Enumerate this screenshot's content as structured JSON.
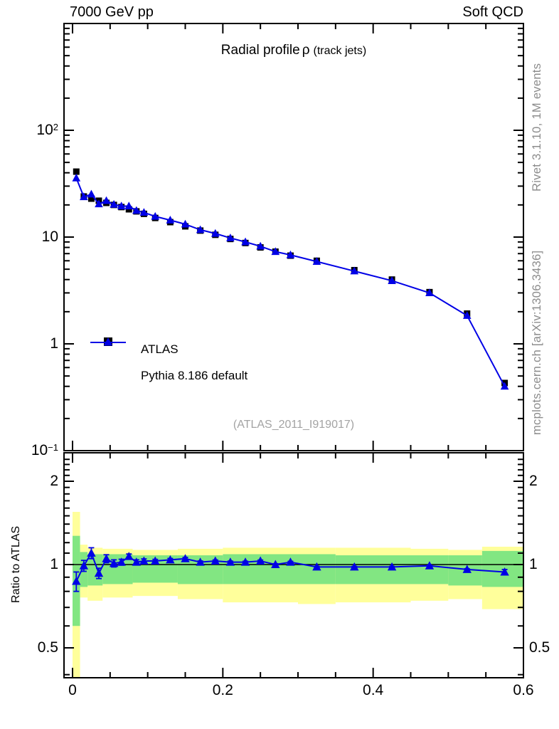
{
  "header": {
    "left": "7000 GeV pp",
    "right": "Soft QCD"
  },
  "main_panel": {
    "title": "Radial profile",
    "title_symbol": "ρ",
    "title_detail": "(track jets)",
    "watermark": "(ATLAS_2011_I919017)",
    "legend": [
      {
        "label": "ATLAS",
        "marker": "black-square"
      },
      {
        "label": "Pythia 8.186 default",
        "marker": "blue-line-triangle"
      }
    ]
  },
  "ratio_panel": {
    "ylabel": "Ratio to ATLAS"
  },
  "credits": {
    "rivet": "Rivet 3.1.10,  1M events",
    "mcplots": "mcplots.cern.ch [arXiv:1306.3436]"
  },
  "colors": {
    "blue": "#0000e6",
    "marker_black": "#000000",
    "band_green": "#82e682",
    "band_yellow": "#ffff9b",
    "credit_gray": "#8c8c8c",
    "watermark_gray": "#a3a3a3",
    "frame_black": "#000000"
  },
  "chart_data": {
    "type": "line",
    "title": "Radial profile ρ (track jets)",
    "xlabel": "",
    "ylabel_main": "",
    "ylabel_ratio": "Ratio to ATLAS",
    "x_log": false,
    "y_log_main": true,
    "y_log_ratio": true,
    "xlim": [
      0,
      0.6
    ],
    "ylim_main": [
      0.1,
      1000
    ],
    "ylim_ratio": [
      0.39,
      2.53
    ],
    "x": [
      0.005,
      0.015,
      0.025,
      0.035,
      0.045,
      0.055,
      0.065,
      0.075,
      0.085,
      0.095,
      0.11,
      0.13,
      0.15,
      0.17,
      0.19,
      0.21,
      0.23,
      0.25,
      0.27,
      0.29,
      0.325,
      0.375,
      0.425,
      0.475,
      0.525,
      0.575
    ],
    "series": [
      {
        "name": "ATLAS",
        "marker": "square",
        "color": "#000000",
        "values": [
          41.0,
          24.0,
          22.9,
          21.9,
          20.9,
          20.0,
          19.1,
          18.2,
          17.4,
          16.5,
          15.1,
          13.8,
          12.6,
          11.5,
          10.5,
          9.6,
          8.8,
          8.0,
          7.3,
          6.7,
          6.0,
          4.9,
          4.0,
          3.05,
          1.92,
          0.43
        ]
      },
      {
        "name": "Pythia 8.186 default",
        "marker": "triangle",
        "color": "#0000e6",
        "values": [
          35.7,
          23.8,
          25.2,
          20.4,
          21.9,
          20.2,
          19.5,
          19.5,
          17.7,
          17.0,
          15.6,
          14.4,
          13.2,
          11.7,
          10.8,
          9.8,
          9.0,
          8.2,
          7.3,
          6.8,
          5.9,
          4.8,
          3.9,
          3.0,
          1.84,
          0.4
        ]
      }
    ],
    "ratio": {
      "name": "Pythia 8.186 default / ATLAS",
      "values": [
        0.87,
        0.99,
        1.1,
        0.93,
        1.05,
        1.01,
        1.02,
        1.07,
        1.02,
        1.03,
        1.03,
        1.04,
        1.05,
        1.02,
        1.03,
        1.02,
        1.02,
        1.03,
        1.0,
        1.02,
        0.98,
        0.98,
        0.98,
        0.99,
        0.96,
        0.94
      ],
      "errors": [
        0.07,
        0.045,
        0.05,
        0.04,
        0.035,
        0.03,
        0.025,
        0.022,
        0.02,
        0.018,
        0.014,
        0.012,
        0.011,
        0.01,
        0.009,
        0.009,
        0.008,
        0.008,
        0.007,
        0.007,
        0.006,
        0.005,
        0.005,
        0.005,
        0.006,
        0.02
      ]
    },
    "bands": {
      "yellow": [
        [
          0.0,
          0.01,
          0.39,
          1.55
        ],
        [
          0.01,
          0.02,
          0.76,
          1.18
        ],
        [
          0.02,
          0.04,
          0.74,
          1.15
        ],
        [
          0.04,
          0.08,
          0.76,
          1.14
        ],
        [
          0.08,
          0.14,
          0.77,
          1.13
        ],
        [
          0.14,
          0.2,
          0.75,
          1.14
        ],
        [
          0.2,
          0.3,
          0.73,
          1.15
        ],
        [
          0.3,
          0.35,
          0.72,
          1.15
        ],
        [
          0.35,
          0.45,
          0.73,
          1.15
        ],
        [
          0.45,
          0.5,
          0.74,
          1.14
        ],
        [
          0.5,
          0.545,
          0.75,
          1.13
        ],
        [
          0.545,
          0.6,
          0.69,
          1.16
        ]
      ],
      "green": [
        [
          0.0,
          0.01,
          0.6,
          1.27
        ],
        [
          0.01,
          0.02,
          0.83,
          1.11
        ],
        [
          0.02,
          0.04,
          0.84,
          1.09
        ],
        [
          0.04,
          0.08,
          0.85,
          1.09
        ],
        [
          0.08,
          0.14,
          0.86,
          1.08
        ],
        [
          0.14,
          0.2,
          0.85,
          1.08
        ],
        [
          0.2,
          0.3,
          0.85,
          1.09
        ],
        [
          0.3,
          0.35,
          0.85,
          1.09
        ],
        [
          0.35,
          0.45,
          0.85,
          1.08
        ],
        [
          0.45,
          0.5,
          0.85,
          1.08
        ],
        [
          0.5,
          0.545,
          0.84,
          1.08
        ],
        [
          0.545,
          0.6,
          0.83,
          1.12
        ]
      ]
    },
    "xticks": [
      {
        "v": 0,
        "label": "0"
      },
      {
        "v": 0.2,
        "label": "0.2"
      },
      {
        "v": 0.4,
        "label": "0.4"
      },
      {
        "v": 0.6,
        "label": "0.6"
      }
    ],
    "xtick_minor_step": 0.05,
    "yticks_main": [
      {
        "v": 100,
        "base": "10",
        "exp": "2"
      },
      {
        "v": 10,
        "base": "10",
        "exp": ""
      },
      {
        "v": 1,
        "base": "1",
        "exp": ""
      },
      {
        "v": 0.1,
        "base": "10",
        "exp": "−1"
      }
    ],
    "yticks_ratio": [
      {
        "v": 2,
        "label": "2"
      },
      {
        "v": 1,
        "label": "1"
      },
      {
        "v": 0.5,
        "label": "0.5"
      }
    ],
    "ratio_unity_line": 1,
    "legend_position": "left-middle",
    "grid": false
  }
}
